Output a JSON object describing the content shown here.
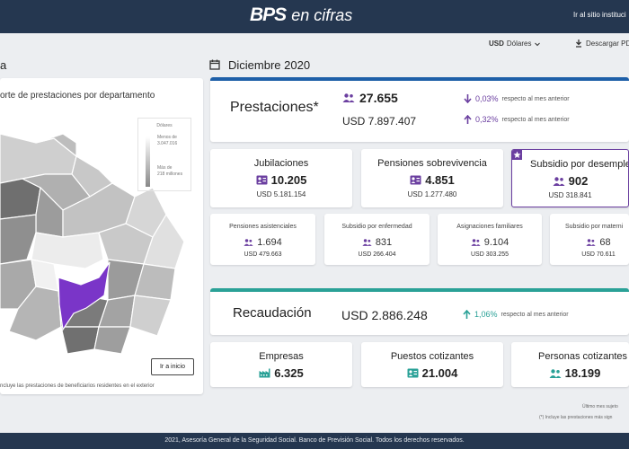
{
  "header": {
    "logo_main": "BPS",
    "logo_sub": "en cifras",
    "external_link": "Ir al sitio instituci"
  },
  "toolbar": {
    "currency_code": "USD",
    "currency_label": "Dólares",
    "pdf_label": "Descargar PDF"
  },
  "left": {
    "title": "a",
    "panel_heading": "orte de prestaciones por departamento",
    "legend": {
      "title": "Dólares",
      "low_label": "Menos de",
      "low_value": "3.047.016",
      "high_label": "Más de",
      "high_value": "218 millones"
    },
    "home_button": "Ir a inicio",
    "note": "ncluye las prestaciones de beneficiarios residentes en el exterior"
  },
  "period": {
    "title": "Diciembre 2020"
  },
  "prestaciones": {
    "title": "Prestaciones*",
    "count": "27.655",
    "amount": "USD 7.897.407",
    "count_change": "0,03%",
    "count_change_text": "respecto al mes anterior",
    "amount_change": "0,32%",
    "amount_change_text": "respecto al mes anterior"
  },
  "main_categories": [
    {
      "title": "Jubilaciones",
      "count": "10.205",
      "amount": "USD 5.181.154"
    },
    {
      "title": "Pensiones sobrevivencia",
      "count": "4.851",
      "amount": "USD 1.277.480"
    },
    {
      "title": "Subsidio por desempleo",
      "count": "902",
      "amount": "USD 318.841"
    }
  ],
  "sub_categories": [
    {
      "title": "Pensiones asistenciales",
      "count": "1.694",
      "amount": "USD 479.663"
    },
    {
      "title": "Subsidio por enfermedad",
      "count": "831",
      "amount": "USD 266.404"
    },
    {
      "title": "Asignaciones familiares",
      "count": "9.104",
      "amount": "USD 303.255"
    },
    {
      "title": "Subsidio por materni",
      "count": "68",
      "amount": "USD 70.611"
    }
  ],
  "recaudacion": {
    "title": "Recaudación",
    "amount": "USD 2.886.248",
    "change": "1,06%",
    "change_text": "respecto al mes anterior"
  },
  "contributors": [
    {
      "title": "Empresas",
      "count": "6.325"
    },
    {
      "title": "Puestos cotizantes",
      "count": "21.004"
    },
    {
      "title": "Personas cotizantes",
      "count": "18.199"
    }
  ],
  "notes": {
    "last_month": "Último mes sujeto",
    "footnote": "(*) Incluye las prestaciones más sign"
  },
  "footer": {
    "text": "2021, Asesoría General de la Seguridad Social. Banco de Previsión Social. Todos los derechos reservados."
  },
  "colors": {
    "header_bg": "#253750",
    "accent_blue": "#1e5fa8",
    "accent_teal": "#2aa197",
    "accent_purple": "#6b3fa0",
    "map_selected": "#7a35c8"
  }
}
